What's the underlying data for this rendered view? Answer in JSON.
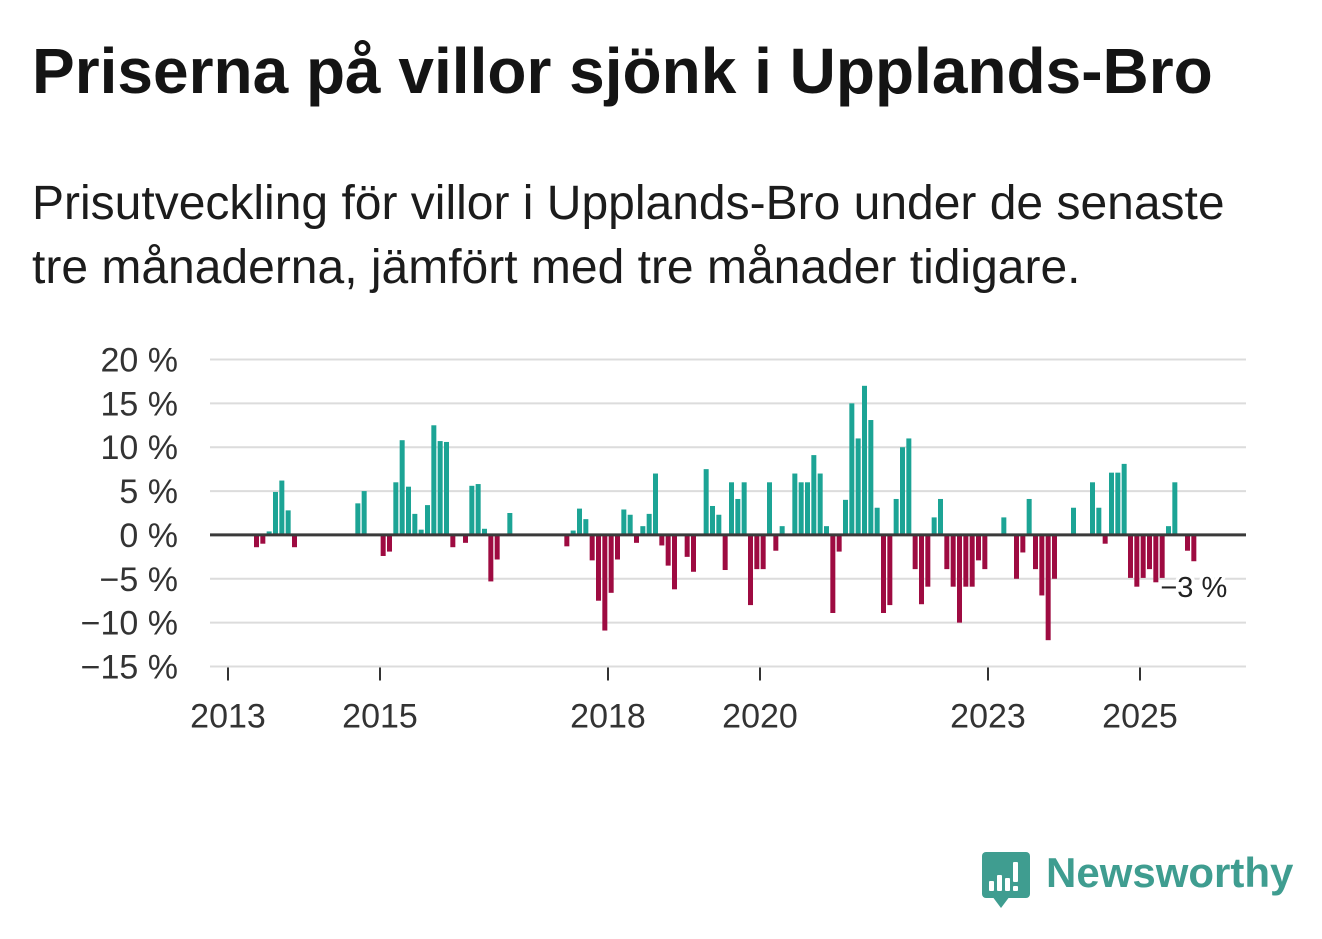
{
  "chart_data": {
    "type": "bar",
    "title": "Priserna på villor sjönk i Upplands-Bro",
    "subtitle": "Prisutveckling för villor i Upplands-Bro under de senaste tre månaderna, jämfört med tre månader tidigare.",
    "ylim": [
      -15,
      20
    ],
    "grid": true,
    "y_ticks": [
      {
        "value": 20,
        "label": "20 %"
      },
      {
        "value": 15,
        "label": "15 %"
      },
      {
        "value": 10,
        "label": "10 %"
      },
      {
        "value": 5,
        "label": "5 %"
      },
      {
        "value": 0,
        "label": "0 %"
      },
      {
        "value": -5,
        "label": "−5 %"
      },
      {
        "value": -10,
        "label": "−10 %"
      },
      {
        "value": -15,
        "label": "−15 %"
      }
    ],
    "x_ticks": [
      "2013",
      "2015",
      "2018",
      "2020",
      "2023",
      "2025"
    ],
    "x": [
      [
        2013,
        5
      ],
      [
        2013,
        6
      ],
      [
        2013,
        7
      ],
      [
        2013,
        8
      ],
      [
        2013,
        9
      ],
      [
        2013,
        10
      ],
      [
        2013,
        11
      ],
      [
        2014,
        9
      ],
      [
        2014,
        10
      ],
      [
        2015,
        1
      ],
      [
        2015,
        2
      ],
      [
        2015,
        3
      ],
      [
        2015,
        4
      ],
      [
        2015,
        5
      ],
      [
        2015,
        6
      ],
      [
        2015,
        7
      ],
      [
        2015,
        8
      ],
      [
        2015,
        9
      ],
      [
        2015,
        10
      ],
      [
        2015,
        11
      ],
      [
        2015,
        12
      ],
      [
        2016,
        2
      ],
      [
        2016,
        3
      ],
      [
        2016,
        4
      ],
      [
        2016,
        5
      ],
      [
        2016,
        6
      ],
      [
        2016,
        7
      ],
      [
        2016,
        9
      ],
      [
        2017,
        6
      ],
      [
        2017,
        7
      ],
      [
        2017,
        8
      ],
      [
        2017,
        9
      ],
      [
        2017,
        10
      ],
      [
        2017,
        11
      ],
      [
        2017,
        12
      ],
      [
        2018,
        1
      ],
      [
        2018,
        2
      ],
      [
        2018,
        3
      ],
      [
        2018,
        4
      ],
      [
        2018,
        5
      ],
      [
        2018,
        6
      ],
      [
        2018,
        7
      ],
      [
        2018,
        8
      ],
      [
        2018,
        9
      ],
      [
        2018,
        10
      ],
      [
        2018,
        11
      ],
      [
        2019,
        1
      ],
      [
        2019,
        2
      ],
      [
        2019,
        4
      ],
      [
        2019,
        5
      ],
      [
        2019,
        6
      ],
      [
        2019,
        7
      ],
      [
        2019,
        8
      ],
      [
        2019,
        9
      ],
      [
        2019,
        10
      ],
      [
        2019,
        11
      ],
      [
        2019,
        12
      ],
      [
        2020,
        1
      ],
      [
        2020,
        2
      ],
      [
        2020,
        3
      ],
      [
        2020,
        4
      ],
      [
        2020,
        6
      ],
      [
        2020,
        7
      ],
      [
        2020,
        8
      ],
      [
        2020,
        9
      ],
      [
        2020,
        10
      ],
      [
        2020,
        11
      ],
      [
        2020,
        12
      ],
      [
        2021,
        1
      ],
      [
        2021,
        2
      ],
      [
        2021,
        3
      ],
      [
        2021,
        4
      ],
      [
        2021,
        5
      ],
      [
        2021,
        6
      ],
      [
        2021,
        7
      ],
      [
        2021,
        8
      ],
      [
        2021,
        9
      ],
      [
        2021,
        10
      ],
      [
        2021,
        11
      ],
      [
        2021,
        12
      ],
      [
        2022,
        1
      ],
      [
        2022,
        2
      ],
      [
        2022,
        3
      ],
      [
        2022,
        4
      ],
      [
        2022,
        5
      ],
      [
        2022,
        6
      ],
      [
        2022,
        7
      ],
      [
        2022,
        8
      ],
      [
        2022,
        9
      ],
      [
        2022,
        10
      ],
      [
        2022,
        11
      ],
      [
        2022,
        12
      ],
      [
        2023,
        3
      ],
      [
        2023,
        5
      ],
      [
        2023,
        6
      ],
      [
        2023,
        7
      ],
      [
        2023,
        8
      ],
      [
        2023,
        9
      ],
      [
        2023,
        10
      ],
      [
        2023,
        11
      ],
      [
        2024,
        2
      ],
      [
        2024,
        5
      ],
      [
        2024,
        6
      ],
      [
        2024,
        7
      ],
      [
        2024,
        8
      ],
      [
        2024,
        9
      ],
      [
        2024,
        10
      ],
      [
        2024,
        11
      ],
      [
        2024,
        12
      ],
      [
        2025,
        1
      ],
      [
        2025,
        2
      ],
      [
        2025,
        3
      ],
      [
        2025,
        4
      ],
      [
        2025,
        5
      ],
      [
        2025,
        6
      ],
      [
        2025,
        8
      ],
      [
        2025,
        9
      ]
    ],
    "values": [
      -1.4,
      -1.0,
      0.4,
      4.9,
      6.2,
      2.8,
      -1.4,
      3.6,
      5.0,
      -2.4,
      -1.9,
      6.0,
      10.8,
      5.5,
      2.4,
      0.6,
      3.4,
      12.5,
      10.7,
      10.6,
      -1.4,
      -0.9,
      5.6,
      5.8,
      0.7,
      -5.3,
      -2.8,
      2.5,
      -1.3,
      0.5,
      3.0,
      1.8,
      -2.9,
      -7.5,
      -10.9,
      -6.6,
      -2.8,
      2.9,
      2.3,
      -0.9,
      1.0,
      2.4,
      7.0,
      -1.2,
      -3.5,
      -6.2,
      -2.5,
      -4.2,
      7.5,
      3.3,
      2.3,
      -4.0,
      6.0,
      4.1,
      6.0,
      -8.0,
      -3.9,
      -3.9,
      6.0,
      -1.8,
      1.0,
      7.0,
      6.0,
      6.0,
      9.1,
      7.0,
      1.0,
      -8.9,
      -1.9,
      4.0,
      15.0,
      11.0,
      17.0,
      13.1,
      3.1,
      -8.9,
      -8.0,
      4.1,
      10.0,
      11.0,
      -3.9,
      -7.9,
      -5.9,
      2.0,
      4.1,
      -3.9,
      -5.9,
      -10.0,
      -5.9,
      -5.9,
      -2.9,
      -3.9,
      2.0,
      -5.0,
      -2.0,
      4.1,
      -3.9,
      -6.9,
      -12.0,
      -5.0,
      3.1,
      6.0,
      3.1,
      -1.0,
      7.1,
      7.1,
      8.1,
      -4.9,
      -5.9,
      -4.9,
      -3.9,
      -5.4,
      -4.9,
      1.0,
      6.0,
      -1.8,
      -3.0
    ],
    "annotations": [
      {
        "x": [
          2025,
          9
        ],
        "text": "−3 %"
      }
    ],
    "colors": {
      "positive": "#1ca495",
      "negative": "#9e0b41",
      "grid": "#dcdcdc",
      "zero_line": "#3a3a3a",
      "axis": "#333333"
    }
  },
  "logo": {
    "text": "Newsworthy",
    "icon": "newsworthy-logo-icon",
    "color": "#3f9d90"
  }
}
